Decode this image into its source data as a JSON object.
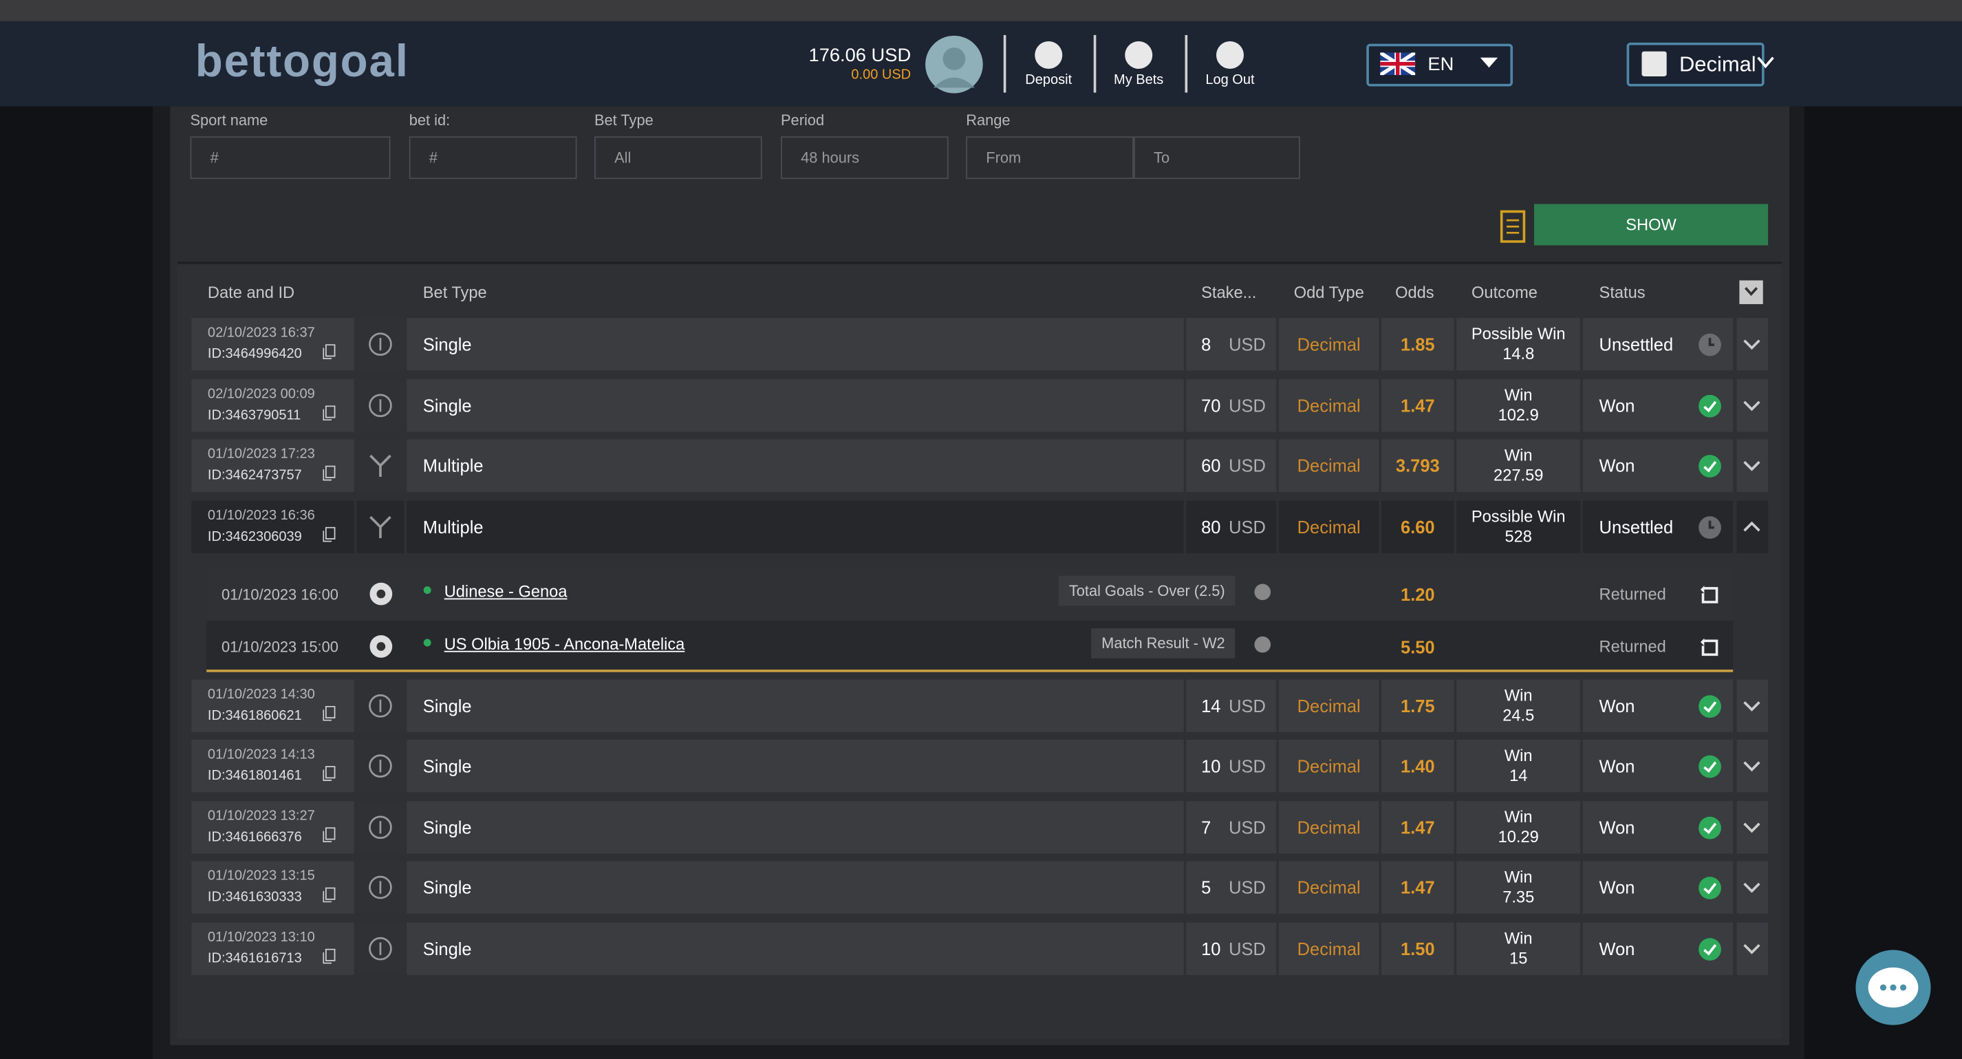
{
  "header": {
    "logo": "bettogoal",
    "balance": "176.06 USD",
    "bonus": "0.00 USD",
    "nav": [
      "Deposit",
      "My Bets",
      "Log Out"
    ],
    "language": "EN",
    "odds_format": "Decimal"
  },
  "filters": {
    "fields": [
      {
        "label": "Sport name",
        "placeholder": "#"
      },
      {
        "label": "bet id:",
        "placeholder": "#"
      },
      {
        "label": "Bet Type",
        "placeholder": "All"
      },
      {
        "label": "Period",
        "placeholder": "48 hours"
      },
      {
        "label": "Range",
        "placeholder": "From"
      },
      {
        "label": null,
        "placeholder": "To"
      }
    ],
    "button": "SHOW"
  },
  "table": {
    "columns": [
      "Date and ID",
      "Bet Type",
      "Stake...",
      "Odd Type",
      "Odds",
      "Outcome",
      "Status"
    ],
    "rows": [
      {
        "date": "02/10/2023 16:37",
        "id": "ID:3464996420",
        "type": "Single",
        "stake": "8",
        "currency": "USD",
        "odd_type": "Decimal",
        "odds": "1.85",
        "outcome": "Possible Win",
        "outcome_value": "14.8",
        "status": "Unsettled"
      },
      {
        "date": "02/10/2023 00:09",
        "id": "ID:3463790511",
        "type": "Single",
        "stake": "70",
        "currency": "USD",
        "odd_type": "Decimal",
        "odds": "1.47",
        "outcome": "Win",
        "outcome_value": "102.9",
        "status": "Won"
      },
      {
        "date": "01/10/2023 17:23",
        "id": "ID:3462473757",
        "type": "Multiple",
        "stake": "60",
        "currency": "USD",
        "odd_type": "Decimal",
        "odds": "3.793",
        "outcome": "Win",
        "outcome_value": "227.59",
        "status": "Won"
      },
      {
        "date": "01/10/2023 16:36",
        "id": "ID:3462306039",
        "type": "Multiple",
        "stake": "80",
        "currency": "USD",
        "odd_type": "Decimal",
        "odds": "6.60",
        "outcome": "Possible Win",
        "outcome_value": "528",
        "status": "Unsettled",
        "legs": [
          {
            "date": "01/10/2023 16:00",
            "match": "Udinese - Genoa",
            "market": "Total Goals - Over (2.5)",
            "odds": "1.20",
            "status": "Returned"
          },
          {
            "date": "01/10/2023 15:00",
            "match": "US Olbia 1905 - Ancona-Matelica",
            "market": "Match Result - W2",
            "odds": "5.50",
            "status": "Returned"
          }
        ]
      },
      {
        "date": "01/10/2023 14:30",
        "id": "ID:3461860621",
        "type": "Single",
        "stake": "14",
        "currency": "USD",
        "odd_type": "Decimal",
        "odds": "1.75",
        "outcome": "Win",
        "outcome_value": "24.5",
        "status": "Won"
      },
      {
        "date": "01/10/2023 14:13",
        "id": "ID:3461801461",
        "type": "Single",
        "stake": "10",
        "currency": "USD",
        "odd_type": "Decimal",
        "odds": "1.40",
        "outcome": "Win",
        "outcome_value": "14",
        "status": "Won"
      },
      {
        "date": "01/10/2023 13:27",
        "id": "ID:3461666376",
        "type": "Single",
        "stake": "7",
        "currency": "USD",
        "odd_type": "Decimal",
        "odds": "1.47",
        "outcome": "Win",
        "outcome_value": "10.29",
        "status": "Won"
      },
      {
        "date": "01/10/2023 13:15",
        "id": "ID:3461630333",
        "type": "Single",
        "stake": "5",
        "currency": "USD",
        "odd_type": "Decimal",
        "odds": "1.47",
        "outcome": "Win",
        "outcome_value": "7.35",
        "status": "Won"
      },
      {
        "date": "01/10/2023 13:10",
        "id": "ID:3461616713",
        "type": "Single",
        "stake": "10",
        "currency": "USD",
        "odd_type": "Decimal",
        "odds": "1.50",
        "outcome": "Win",
        "outcome_value": "15",
        "status": "Won"
      }
    ]
  }
}
